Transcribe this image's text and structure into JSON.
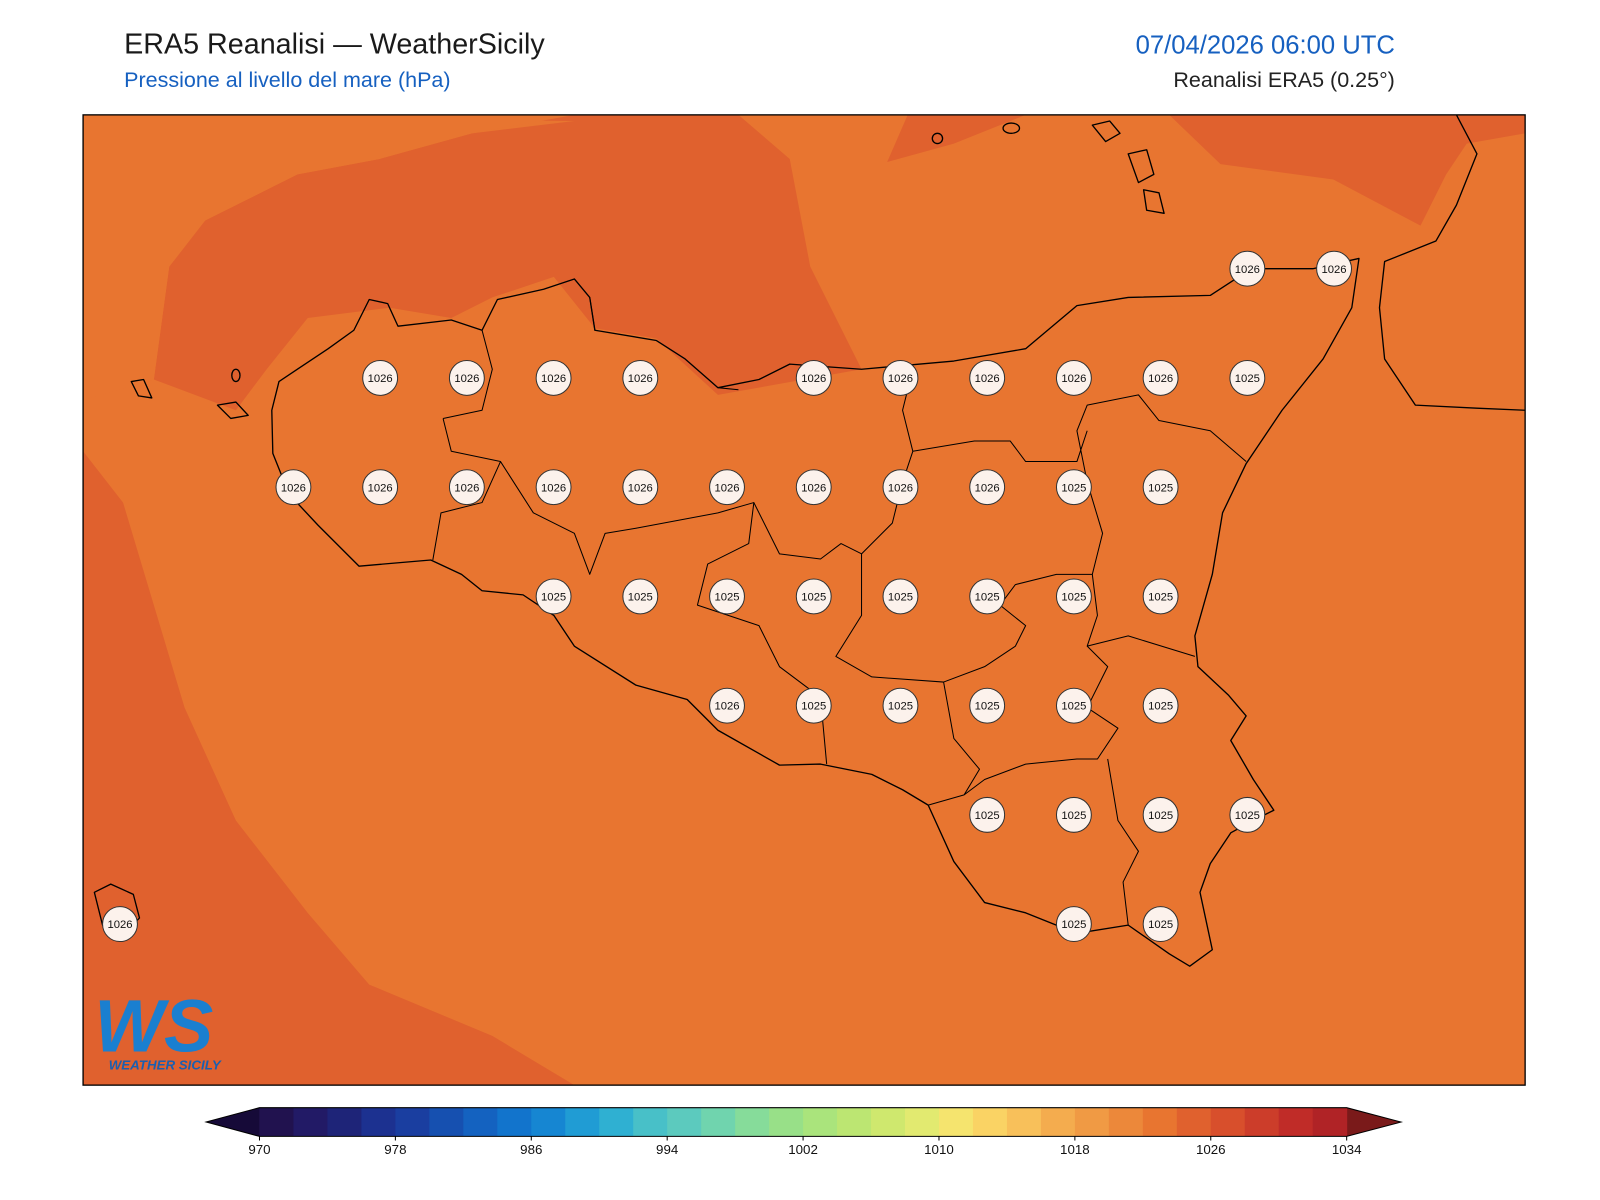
{
  "header": {
    "title": "ERA5 Reanalisi — WeatherSicily",
    "subtitle": "Pressione al livello del mare (hPa)",
    "datetime": "07/04/2026 06:00 UTC",
    "source": "Reanalisi ERA5 (0.25°)"
  },
  "station_grid": {
    "rows": [
      [
        null,
        null,
        null,
        null,
        null,
        null,
        null,
        null,
        null,
        null,
        null,
        null,
        null,
        1026,
        1026
      ],
      [
        null,
        null,
        null,
        1026,
        1026,
        1026,
        1026,
        null,
        1026,
        1026,
        1026,
        1026,
        1026,
        1025,
        null
      ],
      [
        null,
        null,
        1026,
        1026,
        1026,
        1026,
        1026,
        1026,
        1026,
        1026,
        1026,
        1025,
        1025,
        null,
        null
      ],
      [
        null,
        null,
        null,
        null,
        null,
        1025,
        1025,
        1025,
        1025,
        1025,
        1025,
        1025,
        1025,
        null,
        null
      ],
      [
        null,
        null,
        null,
        null,
        null,
        null,
        null,
        1026,
        1025,
        1025,
        1025,
        1025,
        1025,
        null,
        null
      ],
      [
        null,
        null,
        null,
        null,
        null,
        null,
        null,
        null,
        null,
        null,
        1025,
        1025,
        1025,
        1025,
        null
      ],
      [
        1026,
        null,
        null,
        null,
        null,
        null,
        null,
        null,
        null,
        null,
        null,
        1025,
        1025,
        null,
        null
      ]
    ]
  },
  "colorbar": {
    "bounds": [
      970,
      1034
    ],
    "ticks": [
      970,
      978,
      986,
      994,
      1002,
      1010,
      1018,
      1026,
      1034
    ],
    "colors": [
      "#21124f",
      "#221a66",
      "#1e2478",
      "#1c3190",
      "#1a3ea0",
      "#1650b0",
      "#1462c0",
      "#1274cc",
      "#1686d2",
      "#209cd4",
      "#2fb0d2",
      "#48c0c8",
      "#5ccabe",
      "#70d4ae",
      "#86dc9a",
      "#98e088",
      "#aae47c",
      "#bce672",
      "#cfe86e",
      "#e2ea70",
      "#f5e46e",
      "#fad364",
      "#f8c05a",
      "#f4ac4e",
      "#f09a44",
      "#ec883a",
      "#e87530",
      "#e0612e",
      "#d84f2c",
      "#cc3d2a",
      "#c02c28",
      "#b02326"
    ],
    "under_color": "#160a38",
    "over_color": "#7a1a1a"
  },
  "logo": {
    "mark": "WS",
    "text": "WEATHER SICILY"
  }
}
